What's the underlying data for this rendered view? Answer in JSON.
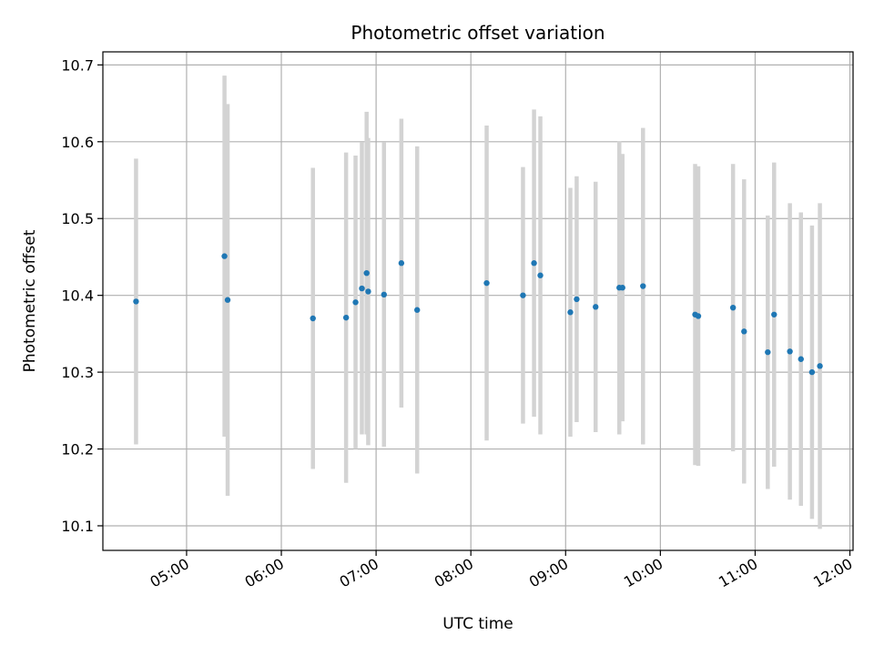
{
  "chart_data": {
    "type": "scatter",
    "title": "Photometric offset variation",
    "xlabel": "UTC time",
    "ylabel": "Photometric offset",
    "x_tick_labels": [
      "05:00",
      "06:00",
      "07:00",
      "08:00",
      "09:00",
      "10:00",
      "11:00",
      "12:00"
    ],
    "y_tick_labels": [
      "10.1",
      "10.2",
      "10.3",
      "10.4",
      "10.5",
      "10.6",
      "10.7"
    ],
    "xlim": [
      "04:07",
      "12:02"
    ],
    "ylim": [
      10.068,
      10.717
    ],
    "grid": true,
    "errorbar_color": "#d3d3d3",
    "marker_color": "#1f77b4",
    "points": [
      {
        "x": "04:28",
        "y": 10.392,
        "err": 0.186
      },
      {
        "x": "05:24",
        "y": 10.451,
        "err": 0.235
      },
      {
        "x": "05:26",
        "y": 10.394,
        "err": 0.255
      },
      {
        "x": "06:20",
        "y": 10.37,
        "err": 0.196
      },
      {
        "x": "06:41",
        "y": 10.371,
        "err": 0.215
      },
      {
        "x": "06:47",
        "y": 10.391,
        "err": 0.191
      },
      {
        "x": "06:51",
        "y": 10.409,
        "err": 0.19
      },
      {
        "x": "06:54",
        "y": 10.429,
        "err": 0.21
      },
      {
        "x": "06:55",
        "y": 10.405,
        "err": 0.2
      },
      {
        "x": "07:05",
        "y": 10.401,
        "err": 0.198
      },
      {
        "x": "07:16",
        "y": 10.442,
        "err": 0.188
      },
      {
        "x": "07:26",
        "y": 10.381,
        "err": 0.213
      },
      {
        "x": "08:10",
        "y": 10.416,
        "err": 0.205
      },
      {
        "x": "08:33",
        "y": 10.4,
        "err": 0.167
      },
      {
        "x": "08:40",
        "y": 10.442,
        "err": 0.2
      },
      {
        "x": "08:44",
        "y": 10.426,
        "err": 0.207
      },
      {
        "x": "09:03",
        "y": 10.378,
        "err": 0.162
      },
      {
        "x": "09:07",
        "y": 10.395,
        "err": 0.16
      },
      {
        "x": "09:19",
        "y": 10.385,
        "err": 0.163
      },
      {
        "x": "09:34",
        "y": 10.41,
        "err": 0.191
      },
      {
        "x": "09:36",
        "y": 10.41,
        "err": 0.174
      },
      {
        "x": "09:49",
        "y": 10.412,
        "err": 0.206
      },
      {
        "x": "10:22",
        "y": 10.375,
        "err": 0.196
      },
      {
        "x": "10:24",
        "y": 10.373,
        "err": 0.195
      },
      {
        "x": "10:46",
        "y": 10.384,
        "err": 0.187
      },
      {
        "x": "10:53",
        "y": 10.353,
        "err": 0.198
      },
      {
        "x": "11:08",
        "y": 10.326,
        "err": 0.178
      },
      {
        "x": "11:12",
        "y": 10.375,
        "err": 0.198
      },
      {
        "x": "11:22",
        "y": 10.327,
        "err": 0.193
      },
      {
        "x": "11:29",
        "y": 10.317,
        "err": 0.191
      },
      {
        "x": "11:36",
        "y": 10.3,
        "err": 0.191
      },
      {
        "x": "11:41",
        "y": 10.308,
        "err": 0.212
      }
    ]
  }
}
